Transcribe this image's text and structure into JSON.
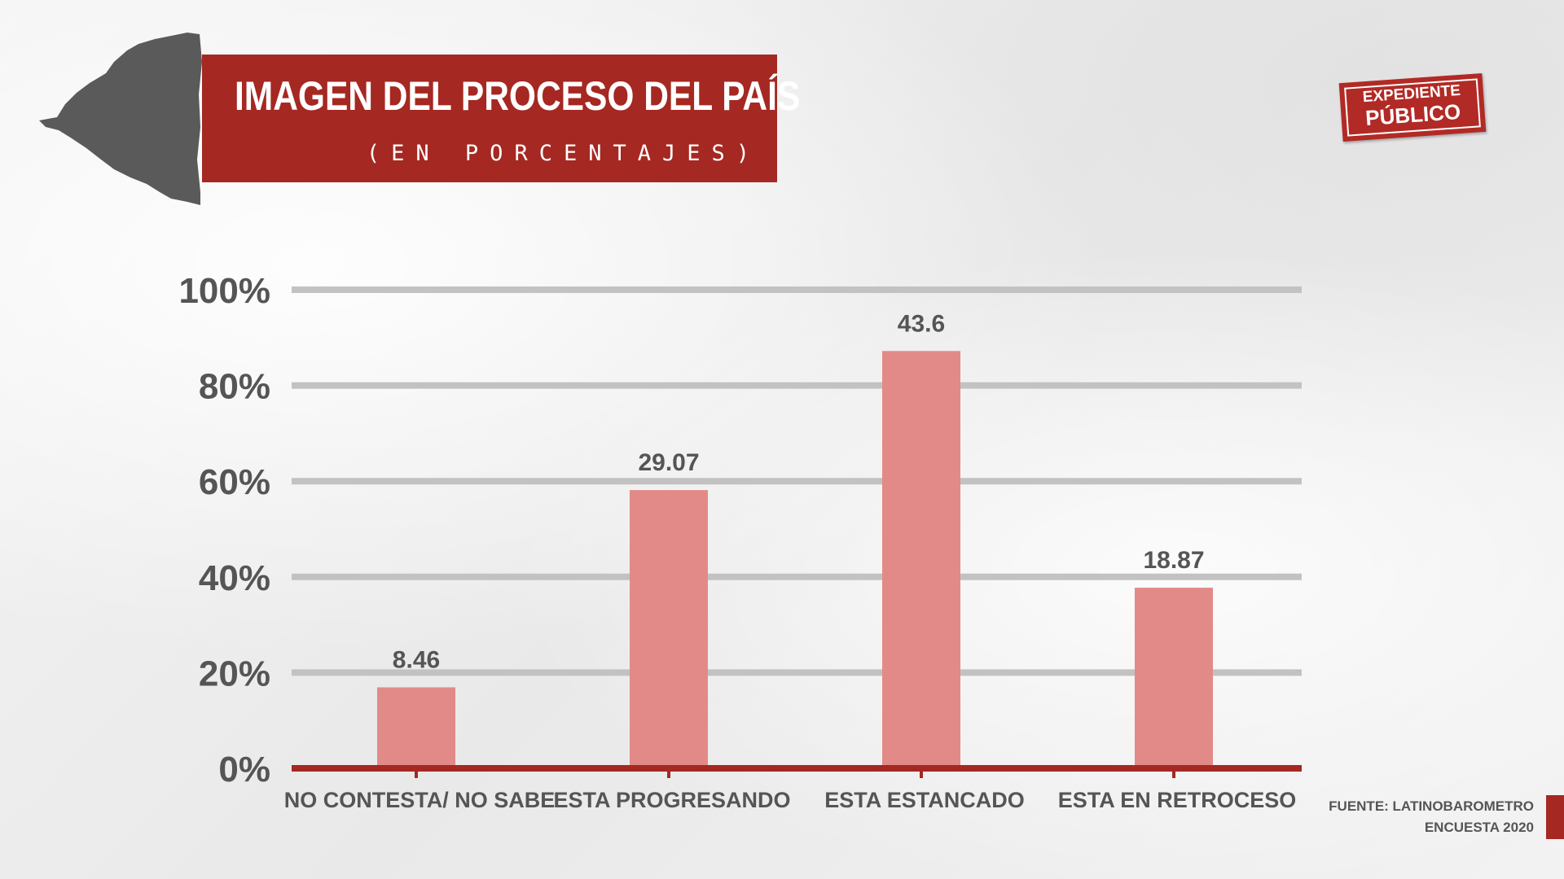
{
  "header": {
    "title": "IMAGEN DEL PROCESO DEL PAÍS",
    "subtitle": "(EN PORCENTAJES)"
  },
  "logo": {
    "line1": "EXPEDIENTE",
    "line2": "PÚBLICO"
  },
  "source": {
    "line1": "FUENTE: LATINOBAROMETRO",
    "line2": "ENCUESTA 2020"
  },
  "colors": {
    "bar": "#e28a87",
    "banner": "#a52822",
    "axis": "#a52822",
    "grid": "#c2c2c2",
    "map": "#5a5a5a"
  },
  "chart_data": {
    "type": "bar",
    "categories": [
      "NO CONTESTA/ NO SABE",
      "ESTA PROGRESANDO",
      "ESTA ESTANCADO",
      "ESTA EN RETROCESO"
    ],
    "values": [
      8.46,
      29.07,
      43.6,
      18.87
    ],
    "data_labels": [
      "8.46",
      "29.07",
      "43.6",
      "18.87"
    ],
    "yticks": [
      "0%",
      "20%",
      "40%",
      "60%",
      "80%",
      "100%"
    ],
    "ylim": [
      0,
      50
    ],
    "grid": true,
    "title": "IMAGEN DEL PROCESO DEL PAÍS",
    "subtitle": "(EN PORCENTAJES)"
  }
}
